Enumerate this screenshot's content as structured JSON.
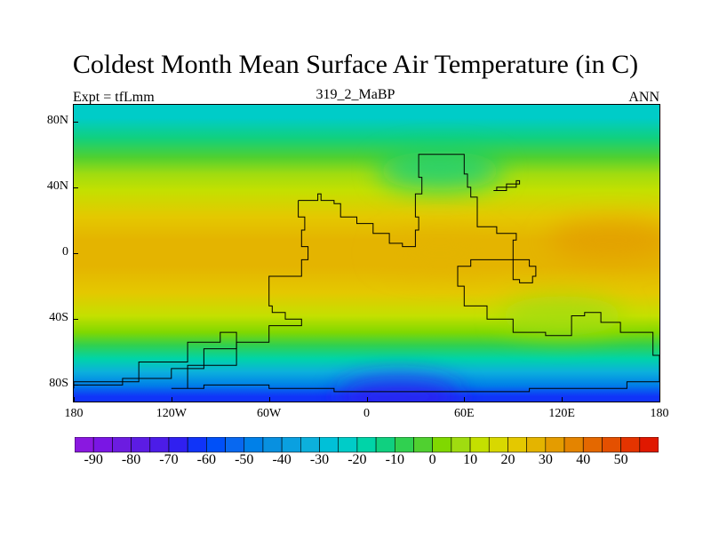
{
  "title": "Coldest Month Mean Surface Air Temperature (in C)",
  "subtitle_left": "Expt = tfLmm",
  "subtitle_center": "319_2_MaBP",
  "subtitle_right": "ANN",
  "map": {
    "projection": "cylindrical equidistant",
    "lon_range": [
      -180,
      180
    ],
    "lat_range": [
      -90,
      90
    ],
    "y_ticks": [
      {
        "label": "80N",
        "lat": 80
      },
      {
        "label": "40N",
        "lat": 40
      },
      {
        "label": "0",
        "lat": 0
      },
      {
        "label": "40S",
        "lat": -40
      },
      {
        "label": "80S",
        "lat": -80
      }
    ],
    "x_ticks": [
      {
        "label": "180",
        "lon": -180
      },
      {
        "label": "120W",
        "lon": -120
      },
      {
        "label": "60W",
        "lon": -60
      },
      {
        "label": "0",
        "lon": 0
      },
      {
        "label": "60E",
        "lon": 60
      },
      {
        "label": "120E",
        "lon": 120
      },
      {
        "label": "180",
        "lon": 180
      }
    ],
    "temperature_bands_by_latitude": [
      {
        "lat": 90,
        "temp": -22
      },
      {
        "lat": 82,
        "temp": -22
      },
      {
        "lat": 70,
        "temp": -12
      },
      {
        "lat": 58,
        "temp": -4
      },
      {
        "lat": 48,
        "temp": 6
      },
      {
        "lat": 38,
        "temp": 14
      },
      {
        "lat": 22,
        "temp": 20
      },
      {
        "lat": 8,
        "temp": 26
      },
      {
        "lat": -8,
        "temp": 26
      },
      {
        "lat": -24,
        "temp": 20
      },
      {
        "lat": -38,
        "temp": 12
      },
      {
        "lat": -48,
        "temp": 2
      },
      {
        "lat": -56,
        "temp": -8
      },
      {
        "lat": -64,
        "temp": -20
      },
      {
        "lat": -72,
        "temp": -34
      },
      {
        "lat": -80,
        "temp": -50
      },
      {
        "lat": -87,
        "temp": -62
      },
      {
        "lat": -90,
        "temp": -64
      }
    ],
    "anomalies": [
      {
        "name": "tropical-warm-pool",
        "lon": 150,
        "lat": 8,
        "temp": 30
      },
      {
        "name": "north-gondwana-warm",
        "lon": 45,
        "lat": 0,
        "temp": 28
      },
      {
        "name": "north-continent-cold",
        "lon": 45,
        "lat": 50,
        "temp": -12
      },
      {
        "name": "east-cold-interior",
        "lon": 120,
        "lat": -38,
        "temp": 8
      },
      {
        "name": "polar-cold-core",
        "lon": 20,
        "lat": -87,
        "temp": -70
      }
    ],
    "coastlines": [
      {
        "name": "main-continent",
        "points": [
          [
            -42,
            32
          ],
          [
            -30,
            36
          ],
          [
            -28,
            32
          ],
          [
            -20,
            30
          ],
          [
            -16,
            22
          ],
          [
            -6,
            18
          ],
          [
            4,
            12
          ],
          [
            14,
            6
          ],
          [
            22,
            4
          ],
          [
            28,
            4
          ],
          [
            30,
            14
          ],
          [
            32,
            22
          ],
          [
            30,
            36
          ],
          [
            34,
            46
          ],
          [
            32,
            60
          ],
          [
            52,
            60
          ],
          [
            60,
            48
          ],
          [
            62,
            40
          ],
          [
            64,
            34
          ],
          [
            68,
            16
          ],
          [
            80,
            12
          ],
          [
            92,
            8
          ],
          [
            90,
            -4
          ],
          [
            100,
            -8
          ],
          [
            104,
            -14
          ],
          [
            102,
            -18
          ],
          [
            94,
            -16
          ],
          [
            90,
            -4
          ],
          [
            64,
            -8
          ],
          [
            56,
            -20
          ],
          [
            60,
            -32
          ],
          [
            74,
            -40
          ],
          [
            90,
            -48
          ],
          [
            110,
            -50
          ],
          [
            126,
            -38
          ],
          [
            134,
            -36
          ],
          [
            144,
            -42
          ],
          [
            156,
            -48
          ],
          [
            176,
            -62
          ],
          [
            180,
            -62
          ],
          [
            180,
            -78
          ],
          [
            160,
            -82
          ],
          [
            100,
            -84
          ],
          [
            40,
            -84
          ],
          [
            -20,
            -82
          ],
          [
            -60,
            -80
          ],
          [
            -100,
            -82
          ],
          [
            -120,
            -82
          ],
          [
            -110,
            -68
          ],
          [
            -80,
            -54
          ],
          [
            -60,
            -44
          ],
          [
            -40,
            -40
          ],
          [
            -50,
            -36
          ],
          [
            -58,
            -32
          ],
          [
            -60,
            -14
          ],
          [
            -40,
            -4
          ],
          [
            -36,
            4
          ],
          [
            -40,
            14
          ],
          [
            -38,
            22
          ],
          [
            -42,
            32
          ]
        ]
      },
      {
        "name": "east-island",
        "points": [
          [
            78,
            38
          ],
          [
            86,
            42
          ],
          [
            94,
            44
          ],
          [
            92,
            40
          ],
          [
            80,
            38
          ],
          [
            78,
            38
          ]
        ]
      },
      {
        "name": "southwest-strip",
        "points": [
          [
            -180,
            -80
          ],
          [
            -150,
            -76
          ],
          [
            -120,
            -70
          ],
          [
            -100,
            -58
          ],
          [
            -80,
            -48
          ],
          [
            -90,
            -54
          ],
          [
            -110,
            -66
          ],
          [
            -140,
            -78
          ],
          [
            -180,
            -82
          ],
          [
            -180,
            -80
          ]
        ]
      }
    ]
  },
  "colorbar": {
    "labels": [
      {
        "text": "-90",
        "value": -90
      },
      {
        "text": "-80",
        "value": -80
      },
      {
        "text": "-70",
        "value": -70
      },
      {
        "text": "-60",
        "value": -60
      },
      {
        "text": "-50",
        "value": -50
      },
      {
        "text": "-40",
        "value": -40
      },
      {
        "text": "-30",
        "value": -30
      },
      {
        "text": "-20",
        "value": -20
      },
      {
        "text": "-10",
        "value": -10
      },
      {
        "text": "0",
        "value": 0
      },
      {
        "text": "10",
        "value": 10
      },
      {
        "text": "20",
        "value": 20
      },
      {
        "text": "30",
        "value": 30
      },
      {
        "text": "40",
        "value": 40
      },
      {
        "text": "50",
        "value": 50
      }
    ],
    "levels": [
      -95,
      -90,
      -85,
      -80,
      -75,
      -70,
      -65,
      -60,
      -55,
      -50,
      -45,
      -40,
      -35,
      -30,
      -25,
      -20,
      -15,
      -10,
      -5,
      0,
      5,
      10,
      15,
      20,
      25,
      30,
      35,
      40,
      45,
      50,
      55
    ],
    "colors": [
      "#8a18e0",
      "#7a16e4",
      "#6c1ce0",
      "#5c1ce4",
      "#4c1ce8",
      "#3020f0",
      "#1034f8",
      "#0050f8",
      "#0868f0",
      "#0080e8",
      "#0890e0",
      "#0aa0e0",
      "#0cb0dc",
      "#00c0d8",
      "#00ccc8",
      "#00d4a8",
      "#10d080",
      "#30d050",
      "#50d030",
      "#80d800",
      "#a0dc10",
      "#c4e000",
      "#d8d800",
      "#e4c800",
      "#e4b400",
      "#e49c00",
      "#e48400",
      "#e46800",
      "#e45000",
      "#e43400",
      "#e01800"
    ]
  }
}
